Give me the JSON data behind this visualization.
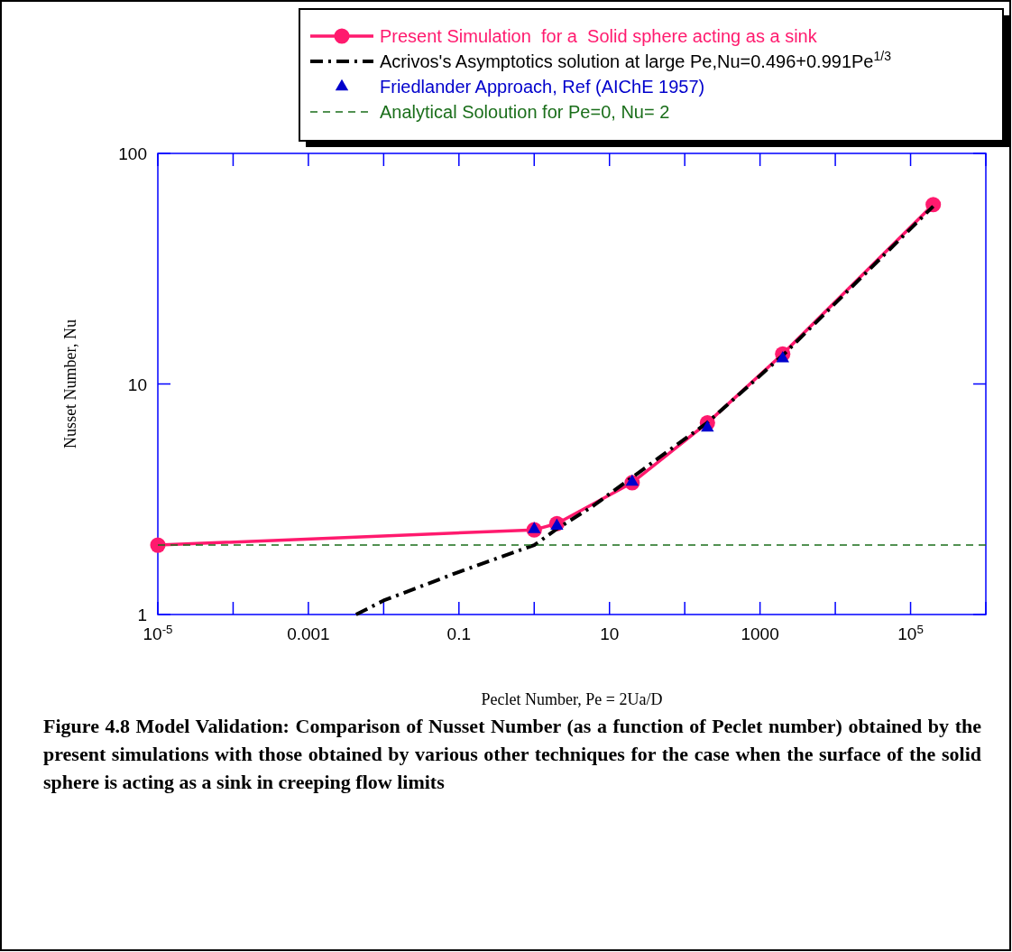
{
  "chart_data": {
    "type": "line",
    "xlabel": "Peclet Number, Pe = 2Ua/D",
    "ylabel": "Nusset Number, Nu",
    "log": "xy",
    "legend": "top right",
    "xlim": [
      1e-05,
      1000000
    ],
    "ylim": [
      1,
      100
    ],
    "xticks": [
      {
        "value": 1e-05,
        "label": "10$^{-5}$"
      },
      {
        "value": 0.0001,
        "label": null
      },
      0.001,
      {
        "value": 0.01,
        "label": null
      },
      0.1,
      {
        "value": 1,
        "label": null
      },
      10,
      {
        "value": 100,
        "label": null
      },
      1000,
      {
        "value": 10000,
        "label": null
      },
      {
        "value": 100000,
        "label": "10$^{5}$"
      },
      {
        "value": 1000000,
        "label": null
      }
    ],
    "yticks": [
      1,
      10,
      100
    ],
    "series": [
      {
        "name": "Present Simulation  for a  Solid sphere acting as a sink",
        "color": "#ff1a6e",
        "marker": "circle",
        "line_style": "solid",
        "x": [
          1e-05,
          1,
          2,
          20,
          200,
          2000,
          200000
        ],
        "values": [
          2,
          2.33,
          2.48,
          3.73,
          6.78,
          13.5,
          60
        ]
      },
      {
        "name": "Acrivos's Asymptotics solution at large Pe,Nu=0.496+0.991Pe$^{1/3}$",
        "color": "#000000",
        "marker": "none",
        "line_style": "dashdot",
        "x": [
          0.0043,
          0.01,
          0.1,
          1,
          2,
          6,
          46,
          200,
          2000,
          200000
        ],
        "values": [
          1,
          1.15,
          1.53,
          2.0,
          2.35,
          2.95,
          4.8,
          6.8,
          13.3,
          59
        ]
      },
      {
        "name": "Friedlander Approach, Ref (AIChE 1957)",
        "type": "scatter",
        "color": "#0000cc",
        "marker": "triangle",
        "x": [
          1,
          2,
          20,
          200,
          2000
        ],
        "values": [
          2.34,
          2.42,
          3.76,
          6.45,
          12.9
        ]
      },
      {
        "name": "Analytical Soloution for Pe=0, Nu= 2",
        "color": "#1a6e1a",
        "marker": "none",
        "line_style": "dashed",
        "x": [
          1e-05,
          1000000
        ],
        "values": [
          2,
          2
        ]
      }
    ],
    "annotations": [
      "Figure 4.8 Model Validation: Comparison of Nusset Number (as a function of Peclet number) obtained by the present simulations with those obtained by various other techniques for the case when the surface of the solid sphere is acting as a sink in creeping flow limits"
    ]
  }
}
